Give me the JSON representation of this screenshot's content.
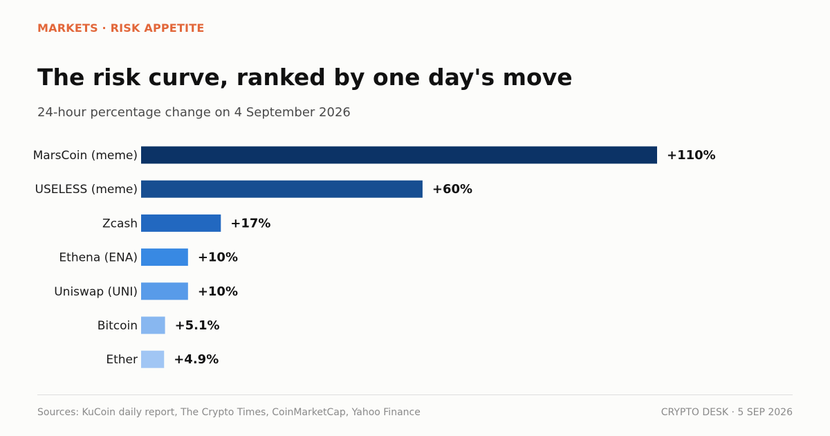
{
  "header": {
    "kicker": "MARKETS · RISK APPETITE",
    "title": "The risk curve, ranked by one day's move",
    "subtitle": "24-hour percentage change on 4 September 2026"
  },
  "chart_data": {
    "type": "bar",
    "orientation": "horizontal",
    "categories": [
      "MarsCoin (meme)",
      "USELESS (meme)",
      "Zcash",
      "Ethena (ENA)",
      "Uniswap (UNI)",
      "Bitcoin",
      "Ether"
    ],
    "values": [
      110,
      60,
      17,
      10,
      10,
      5.1,
      4.9
    ],
    "labels": [
      "+110%",
      "+60%",
      "+17%",
      "+10%",
      "+10%",
      "+5.1%",
      "+4.9%"
    ],
    "colors": [
      "#0c3366",
      "#174e91",
      "#2268c0",
      "#3889e3",
      "#589be9",
      "#88b7f0",
      "#a1c6f4"
    ],
    "xlim": [
      0,
      110
    ],
    "grid": false,
    "legend": "none"
  },
  "footer": {
    "source": "Sources: KuCoin daily report, The Crypto Times, CoinMarketCap, Yahoo Finance",
    "credit": "CRYPTO DESK  ·  5 SEP 2026"
  }
}
